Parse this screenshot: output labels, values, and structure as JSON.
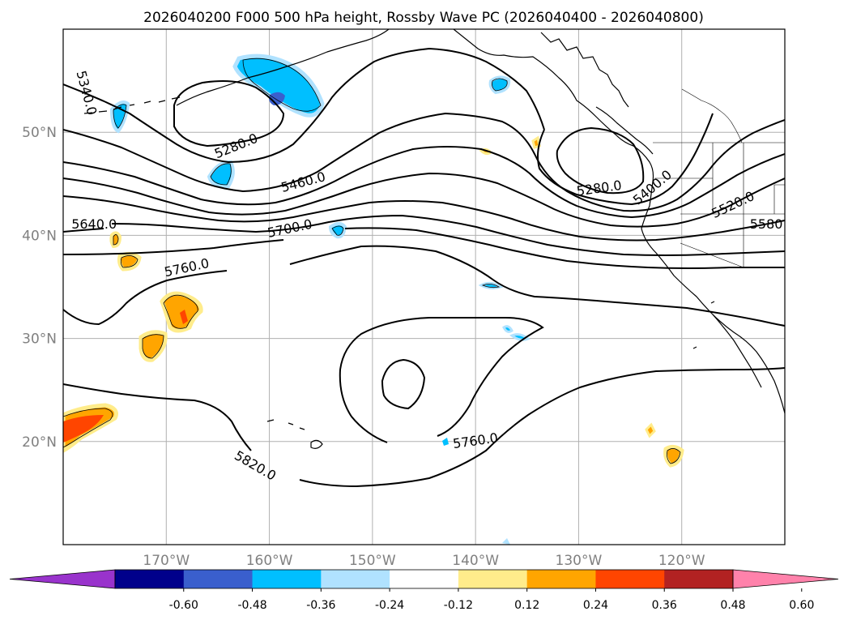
{
  "title": "2026040200 F000 500 hPa height, Rossby Wave PC (2026040400 - 2026040800)",
  "map": {
    "lon_range": [
      -180,
      -110
    ],
    "lat_range": [
      10,
      60
    ],
    "lon_ticks": [
      {
        "value": -170,
        "label": "170°W"
      },
      {
        "value": -160,
        "label": "160°W"
      },
      {
        "value": -150,
        "label": "150°W"
      },
      {
        "value": -140,
        "label": "140°W"
      },
      {
        "value": -130,
        "label": "130°W"
      },
      {
        "value": -120,
        "label": "120°W"
      }
    ],
    "lat_ticks": [
      {
        "value": 20,
        "label": "20°N"
      },
      {
        "value": 30,
        "label": "30°N"
      },
      {
        "value": 40,
        "label": "40°N"
      },
      {
        "value": 50,
        "label": "50°N"
      }
    ],
    "contour_labels": [
      {
        "text": "5340.0",
        "lon": -177.8,
        "lat": 53.8,
        "angle": 75
      },
      {
        "text": "5280.0",
        "lon": -163.2,
        "lat": 48.6,
        "angle": -22
      },
      {
        "text": "5460.0",
        "lon": -156.7,
        "lat": 45.1,
        "angle": -15
      },
      {
        "text": "5280.0",
        "lon": -128.0,
        "lat": 44.5,
        "angle": -8
      },
      {
        "text": "5400.0",
        "lon": -122.8,
        "lat": 44.6,
        "angle": -40
      },
      {
        "text": "5520.0",
        "lon": -115.0,
        "lat": 42.9,
        "angle": -25
      },
      {
        "text": "5580",
        "lon": -111.8,
        "lat": 41.0,
        "angle": 0
      },
      {
        "text": "5640.0",
        "lon": -177.0,
        "lat": 41.0,
        "angle": 0
      },
      {
        "text": "5700.0",
        "lon": -158.0,
        "lat": 40.6,
        "angle": -12
      },
      {
        "text": "5760.0",
        "lon": -168.0,
        "lat": 36.8,
        "angle": -12
      },
      {
        "text": "5760.0",
        "lon": -140.0,
        "lat": 20.0,
        "angle": -8
      },
      {
        "text": "5820.0",
        "lon": -161.4,
        "lat": 17.6,
        "angle": 30
      }
    ]
  },
  "colorbar": {
    "ticks": [
      "-0.60",
      "-0.48",
      "-0.36",
      "-0.24",
      "-0.12",
      "0.12",
      "0.24",
      "0.36",
      "0.48",
      "0.60"
    ],
    "colors": [
      "#9933CC",
      "#00008B",
      "#3A5FCD",
      "#00BFFF",
      "#B0E2FF",
      "#FFFFFF",
      "#FFEC8B",
      "#FFA500",
      "#FF4500",
      "#B22222",
      "#FF82AB"
    ]
  }
}
